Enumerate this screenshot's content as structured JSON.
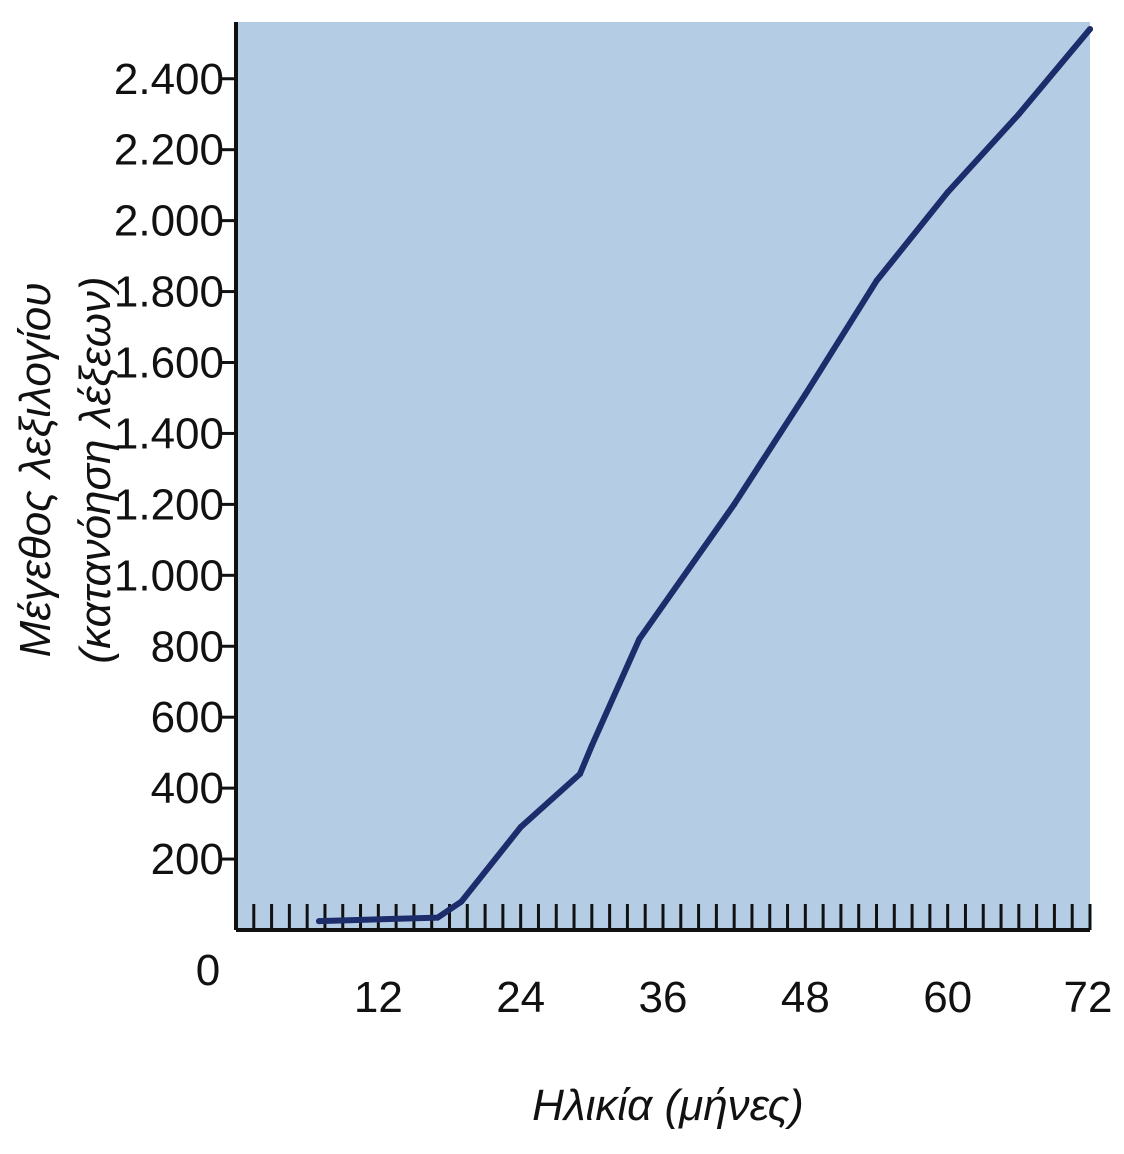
{
  "chart_data": {
    "type": "line",
    "title": "",
    "xlabel": "Ηλικία (μήνες)",
    "ylabel_line1": "Μέγεθος λεξιλογίου",
    "ylabel_line2": "(κατανόηση λέξεων)",
    "origin_label": "0",
    "xlim": [
      0,
      72
    ],
    "ylim": [
      0,
      2560
    ],
    "x_ticks": [
      12,
      24,
      36,
      48,
      60,
      72
    ],
    "x_tick_labels": [
      "12",
      "24",
      "36",
      "48",
      "60",
      "72"
    ],
    "x_minor_tick_step": 1.5,
    "y_ticks": [
      200,
      400,
      600,
      800,
      1000,
      1200,
      1400,
      1600,
      1800,
      2000,
      2200,
      2400
    ],
    "y_tick_labels": [
      "200",
      "400",
      "600",
      "800",
      "1.000",
      "1.200",
      "1.400",
      "1.600",
      "1.800",
      "2.000",
      "2.200",
      "2.400"
    ],
    "grid": false,
    "series": [
      {
        "x": [
          7,
          17,
          19,
          24,
          29,
          30,
          34,
          42,
          48,
          54,
          60,
          66,
          72
        ],
        "y": [
          25,
          35,
          80,
          290,
          440,
          520,
          820,
          1200,
          1510,
          1830,
          2080,
          2300,
          2540
        ]
      }
    ],
    "colors": {
      "plot_background": "#b5cde4",
      "line": "#1d2c6b",
      "axis": "#111111"
    }
  }
}
